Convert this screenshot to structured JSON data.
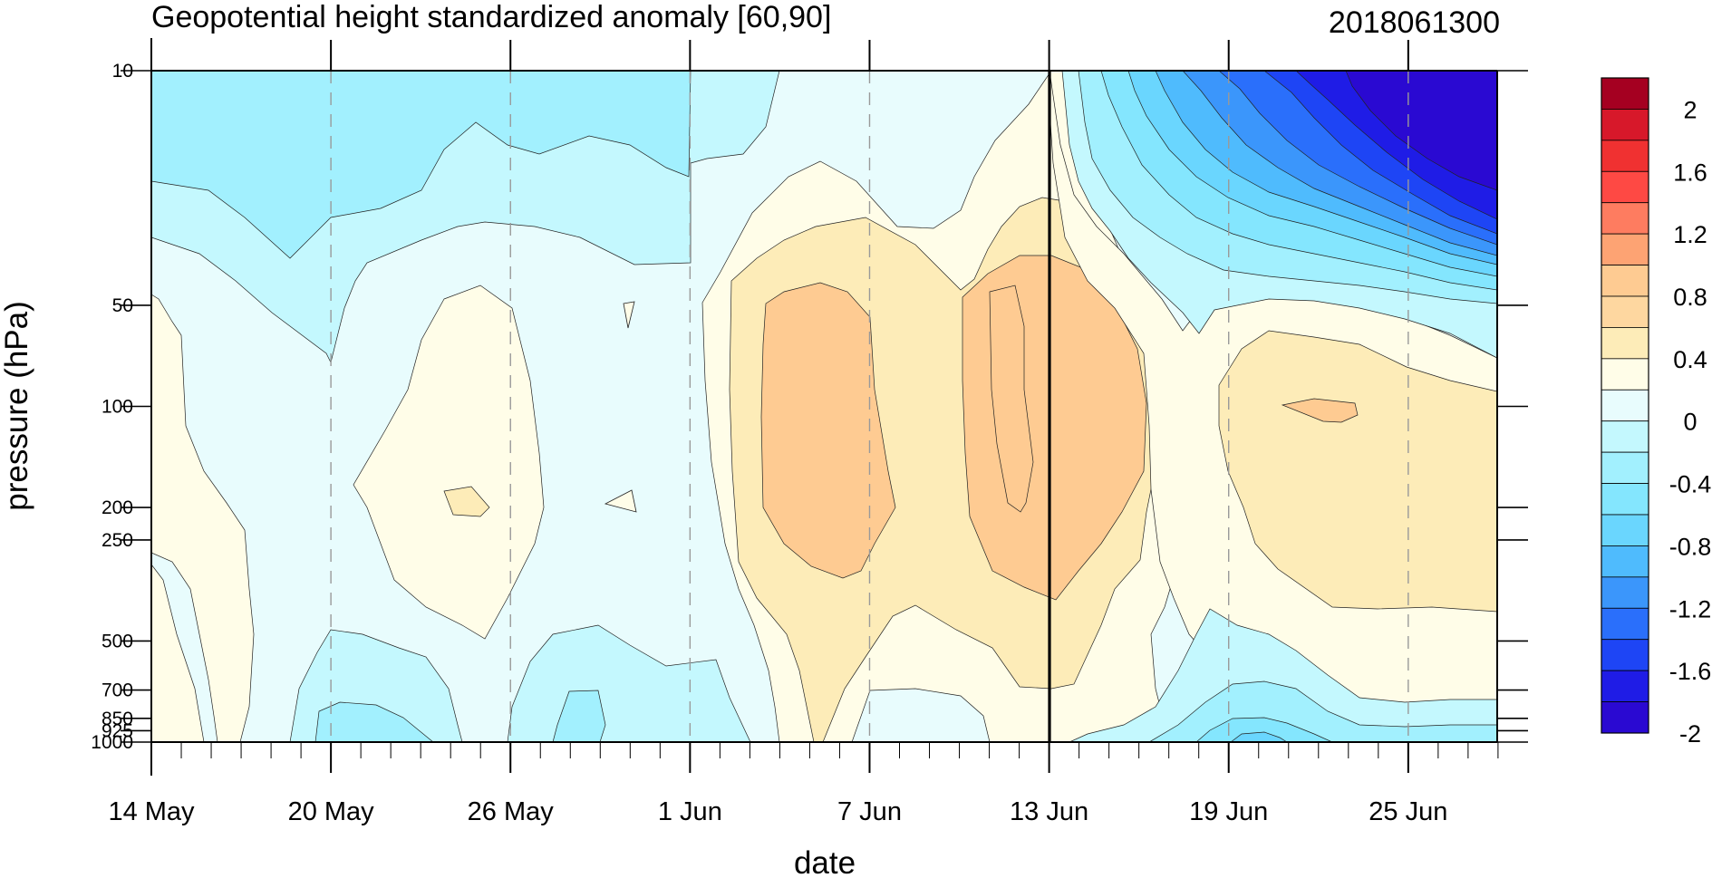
{
  "chart_data": {
    "type": "heatmap",
    "title": "Geopotential height standardized anomaly [60,90]",
    "date_label": "2018061300",
    "xlabel": "date",
    "ylabel": "pressure (hPa)",
    "x_ticks": [
      "14 May",
      "20 May",
      "26 May",
      "1 Jun",
      "7 Jun",
      "13 Jun",
      "19 Jun",
      "25 Jun"
    ],
    "y_ticks": [
      "10",
      "50",
      "100",
      "200",
      "250",
      "500",
      "700",
      "850",
      "925",
      "1000"
    ],
    "y_log_scale": true,
    "colorbar": {
      "labels": [
        "2",
        "1.6",
        "1.2",
        "0.8",
        "0.4",
        "0",
        "-0.4",
        "-0.8",
        "-1.2",
        "-1.6",
        "-2"
      ],
      "colors": [
        "#a50021",
        "#d7182a",
        "#f03131",
        "#fe4944",
        "#fe7c60",
        "#fda373",
        "#fecb92",
        "#fed7a0",
        "#fdecb8",
        "#fffde8",
        "#e8fcfd",
        "#c4f8fe",
        "#a2f0fe",
        "#84e6fe",
        "#6ad6fe",
        "#4fbbfd",
        "#3b96fb",
        "#2a6ffb",
        "#1e45f5",
        "#1f1ce6",
        "#2a09d2"
      ]
    },
    "analysis_date_line": "13 Jun",
    "x_range": [
      "14 May",
      "27 Jun"
    ],
    "y_range": [
      1000,
      10
    ],
    "dashed_gridlines": true
  }
}
